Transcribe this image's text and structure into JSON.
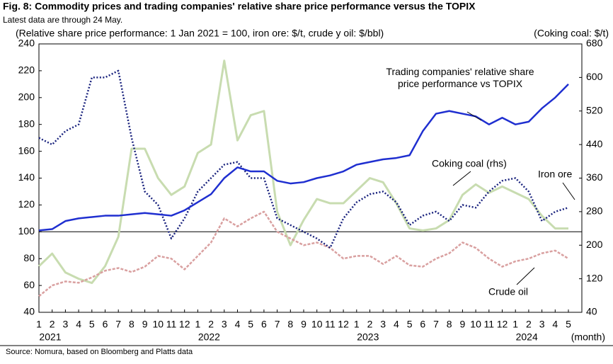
{
  "chart_data": {
    "type": "line",
    "title": "Fig. 8: Commodity prices and trading companies' relative share price performance versus the TOPIX",
    "subtitle": "Latest data are through 24 May.",
    "y_axis_label": "(Relative share price performance: 1 Jan 2021 = 100, iron ore: $/t, crude y  oil: $/bbl)",
    "y2_axis_label": "(Coking coal: $/t)",
    "x_unit": "(month)",
    "years": [
      "2021",
      "2022",
      "2023",
      "2024"
    ],
    "source": "Source: Nomura, based on Bloomberg and Platts data",
    "categories": [
      "1",
      "2",
      "3",
      "4",
      "5",
      "6",
      "7",
      "8",
      "9",
      "10",
      "11",
      "12",
      "1",
      "2",
      "3",
      "4",
      "5",
      "6",
      "7",
      "8",
      "9",
      "10",
      "11",
      "12",
      "1",
      "2",
      "3",
      "4",
      "5",
      "6",
      "7",
      "8",
      "9",
      "10",
      "11",
      "12",
      "1",
      "2",
      "3",
      "4",
      "5"
    ],
    "ylim": [
      40,
      240
    ],
    "yticks": [
      40,
      60,
      80,
      100,
      120,
      140,
      160,
      180,
      200,
      220,
      240
    ],
    "y2lim": [
      40,
      680
    ],
    "y2ticks": [
      40,
      120,
      200,
      280,
      360,
      440,
      520,
      600,
      680
    ],
    "reference_line": 100,
    "series": [
      {
        "name": "Trading companies' relative share price performance vs TOPIX",
        "color": "#1f2fd0",
        "values": [
          101,
          102,
          108,
          110,
          111,
          112,
          112,
          113,
          114,
          113,
          112,
          116,
          122,
          128,
          140,
          148,
          145,
          145,
          138,
          136,
          137,
          140,
          142,
          145,
          150,
          152,
          154,
          155,
          157,
          175,
          188,
          190,
          188,
          186,
          180,
          185,
          180,
          182,
          192,
          200,
          210
        ]
      },
      {
        "name": "Iron ore",
        "color": "#1a237e",
        "values": [
          170,
          165,
          175,
          180,
          215,
          215,
          220,
          170,
          130,
          120,
          95,
          110,
          130,
          140,
          150,
          152,
          140,
          140,
          110,
          105,
          100,
          95,
          88,
          110,
          122,
          128,
          130,
          122,
          105,
          112,
          115,
          108,
          120,
          118,
          130,
          138,
          140,
          130,
          108,
          115,
          118
        ]
      },
      {
        "name": "Coking coal (rhs)",
        "color": "#c8dcb0",
        "axis": "y2",
        "values": [
          150,
          180,
          135,
          120,
          110,
          150,
          220,
          430,
          430,
          360,
          320,
          340,
          420,
          440,
          640,
          450,
          510,
          520,
          280,
          200,
          260,
          310,
          300,
          300,
          330,
          360,
          350,
          300,
          240,
          235,
          240,
          260,
          320,
          345,
          325,
          340,
          325,
          310,
          270,
          240,
          240
        ]
      },
      {
        "name": "Crude oil",
        "color": "#d9a0a0",
        "values": [
          52,
          60,
          63,
          62,
          66,
          71,
          73,
          70,
          74,
          82,
          80,
          72,
          82,
          92,
          110,
          104,
          110,
          115,
          100,
          95,
          90,
          92,
          88,
          80,
          82,
          82,
          76,
          82,
          75,
          74,
          80,
          84,
          92,
          88,
          80,
          74,
          78,
          80,
          84,
          86,
          80
        ]
      }
    ]
  }
}
